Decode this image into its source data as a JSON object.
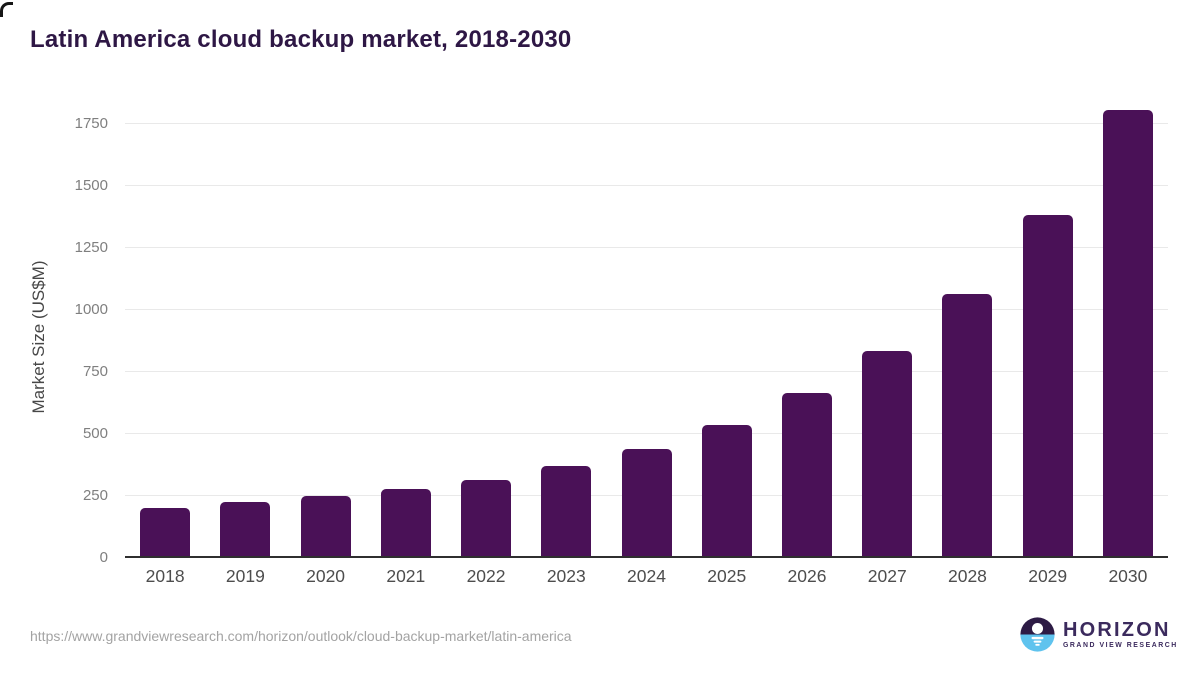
{
  "title": "Latin America cloud backup market, 2018-2030",
  "colors": {
    "bar": "#4a1157",
    "title_text": "#2e1745",
    "gridline": "#e9e9e9",
    "axis_line": "#2f2f2f",
    "logo_purple": "#3b2a5d",
    "logo_dark_half": "#2d1b45",
    "logo_blue_half": "#5fc3ee"
  },
  "chart_data": {
    "type": "bar",
    "title": "Latin America cloud backup market, 2018-2030",
    "categories": [
      "2018",
      "2019",
      "2020",
      "2021",
      "2022",
      "2023",
      "2024",
      "2025",
      "2026",
      "2027",
      "2028",
      "2029",
      "2030"
    ],
    "values": [
      200,
      225,
      250,
      280,
      315,
      370,
      440,
      535,
      665,
      835,
      1065,
      1385,
      1805
    ],
    "xlabel": "",
    "ylabel": "Market Size (US$M)",
    "ylim": [
      0,
      1850
    ],
    "yticks": [
      0,
      250,
      500,
      750,
      1000,
      1250,
      1500,
      1750
    ],
    "grid": true,
    "legend": false,
    "bar_color": "#4a1157"
  },
  "footer": {
    "source_url": "https://www.grandviewresearch.com/horizon/outlook/cloud-backup-market/latin-america",
    "logo_title": "HORIZON",
    "logo_subtitle": "GRAND VIEW RESEARCH"
  }
}
